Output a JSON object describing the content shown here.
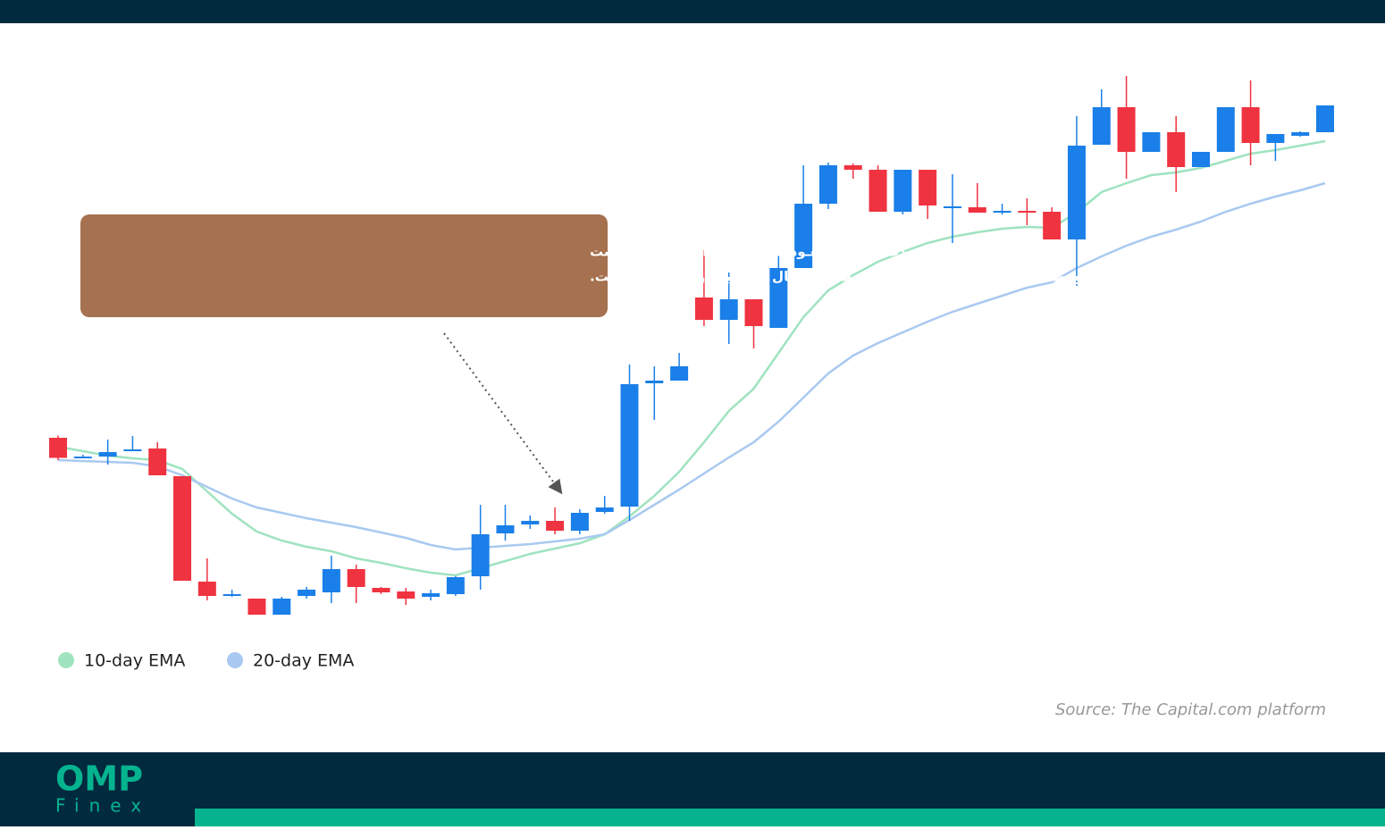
{
  "chart_data": {
    "type": "candlestick",
    "annotation": [
      "ای ام ای (EMA) کوتـاه‌مدت درحـال صعـود بـه بالای EMA بلنـدمـدت است",
      "و تقاطع طلایی را شکل می‌دهد که نشان‌دهنده احتمال تغییر به روند صعودی است."
    ],
    "source": "Source: The Capital.com platform",
    "up_color": "#1a7fe8",
    "down_color": "#ef3340",
    "ylim": [
      0,
      124
    ],
    "open": [
      42,
      37.8,
      37.8,
      39,
      39.6,
      33.4,
      9.8,
      7,
      6,
      2.4,
      6.6,
      7.4,
      12.6,
      8.4,
      7.6,
      6.4,
      7,
      11,
      20.6,
      22.6,
      23.4,
      21.2,
      25.4,
      26.6,
      54.2,
      54.8,
      73.4,
      68.4,
      73,
      66.6,
      80,
      94.4,
      103,
      102,
      92.6,
      102,
      93.8,
      93.6,
      92.4,
      92.8,
      92.6,
      86.4,
      107.6,
      116,
      106,
      110.4,
      102.6,
      106,
      116,
      108,
      109.6,
      110.4
    ],
    "high": [
      42.5,
      38.2,
      41.6,
      42.4,
      41,
      33.4,
      15,
      8,
      6,
      6.4,
      8.6,
      15.6,
      13.6,
      8.6,
      8.4,
      8,
      11,
      27,
      27,
      24.6,
      26.4,
      26,
      29,
      58.4,
      58,
      61,
      84,
      79,
      73,
      83,
      103,
      103.6,
      103.4,
      103,
      102,
      102,
      101,
      99,
      94.4,
      95.6,
      93.6,
      114,
      120,
      123,
      110.4,
      114,
      106,
      116,
      122,
      110,
      110.6,
      116.4
    ],
    "low": [
      37,
      37.4,
      36,
      39,
      33.6,
      10,
      5.6,
      6.4,
      2.4,
      2.4,
      6,
      5,
      5,
      7,
      4.6,
      5.6,
      6.6,
      8,
      19,
      21.6,
      20.4,
      20.4,
      25,
      23.4,
      46,
      54.8,
      67,
      63,
      62,
      66.6,
      80,
      93.2,
      100,
      92.6,
      92,
      91,
      85.6,
      92.4,
      92,
      89.6,
      86.4,
      76,
      107.6,
      100,
      106,
      97,
      102.6,
      106,
      103,
      104,
      109.4,
      110.4
    ],
    "close": [
      37.5,
      37.8,
      38.8,
      39.4,
      33.6,
      10,
      6.6,
      7,
      2.4,
      6,
      8,
      12.6,
      8.6,
      7.4,
      6,
      7.2,
      10.8,
      20.4,
      22.4,
      23.4,
      21.2,
      25.2,
      26.4,
      54,
      54.8,
      58,
      68.4,
      73,
      67,
      80,
      94.4,
      103,
      102,
      92.6,
      102,
      94,
      93.8,
      92.4,
      92.8,
      92.6,
      86.4,
      107.4,
      116,
      106,
      110.4,
      102.6,
      106,
      116,
      108,
      110,
      110.4,
      116.4
    ],
    "series": [
      {
        "name": "10-day EMA",
        "color": "#9fe3c0",
        "values": [
          40,
          39,
          38,
          37.4,
          37,
          35,
          30,
          25,
          21,
          19,
          17.6,
          16.6,
          15,
          14,
          12.8,
          11.8,
          11.2,
          12.8,
          14.4,
          16,
          17.2,
          18.4,
          20.4,
          24.4,
          29,
          34.4,
          41,
          48,
          53,
          61,
          69,
          75,
          78.4,
          81.4,
          83.6,
          85.6,
          87,
          88,
          88.8,
          89.2,
          89,
          92.4,
          97,
          99,
          100.8,
          101.4,
          102.4,
          104,
          105.6,
          106.4,
          107.4,
          108.4
        ]
      },
      {
        "name": "20-day EMA",
        "color": "#a9c9f0",
        "values": [
          37,
          36.8,
          36.6,
          36.4,
          35.6,
          33.6,
          31,
          28.4,
          26.4,
          25.2,
          24,
          23,
          22,
          20.8,
          19.6,
          18,
          17,
          17.4,
          17.8,
          18.2,
          18.8,
          19.4,
          20.4,
          23.6,
          27,
          30.4,
          34,
          37.6,
          41,
          45.6,
          51,
          56.4,
          60.4,
          63.2,
          65.6,
          68,
          70.2,
          72,
          73.8,
          75.6,
          76.8,
          80,
          82.6,
          85,
          87,
          88.6,
          90.4,
          92.6,
          94.4,
          96,
          97.4,
          99
        ]
      }
    ]
  },
  "logo": {
    "name": "OMP",
    "tagline": "Finex"
  }
}
